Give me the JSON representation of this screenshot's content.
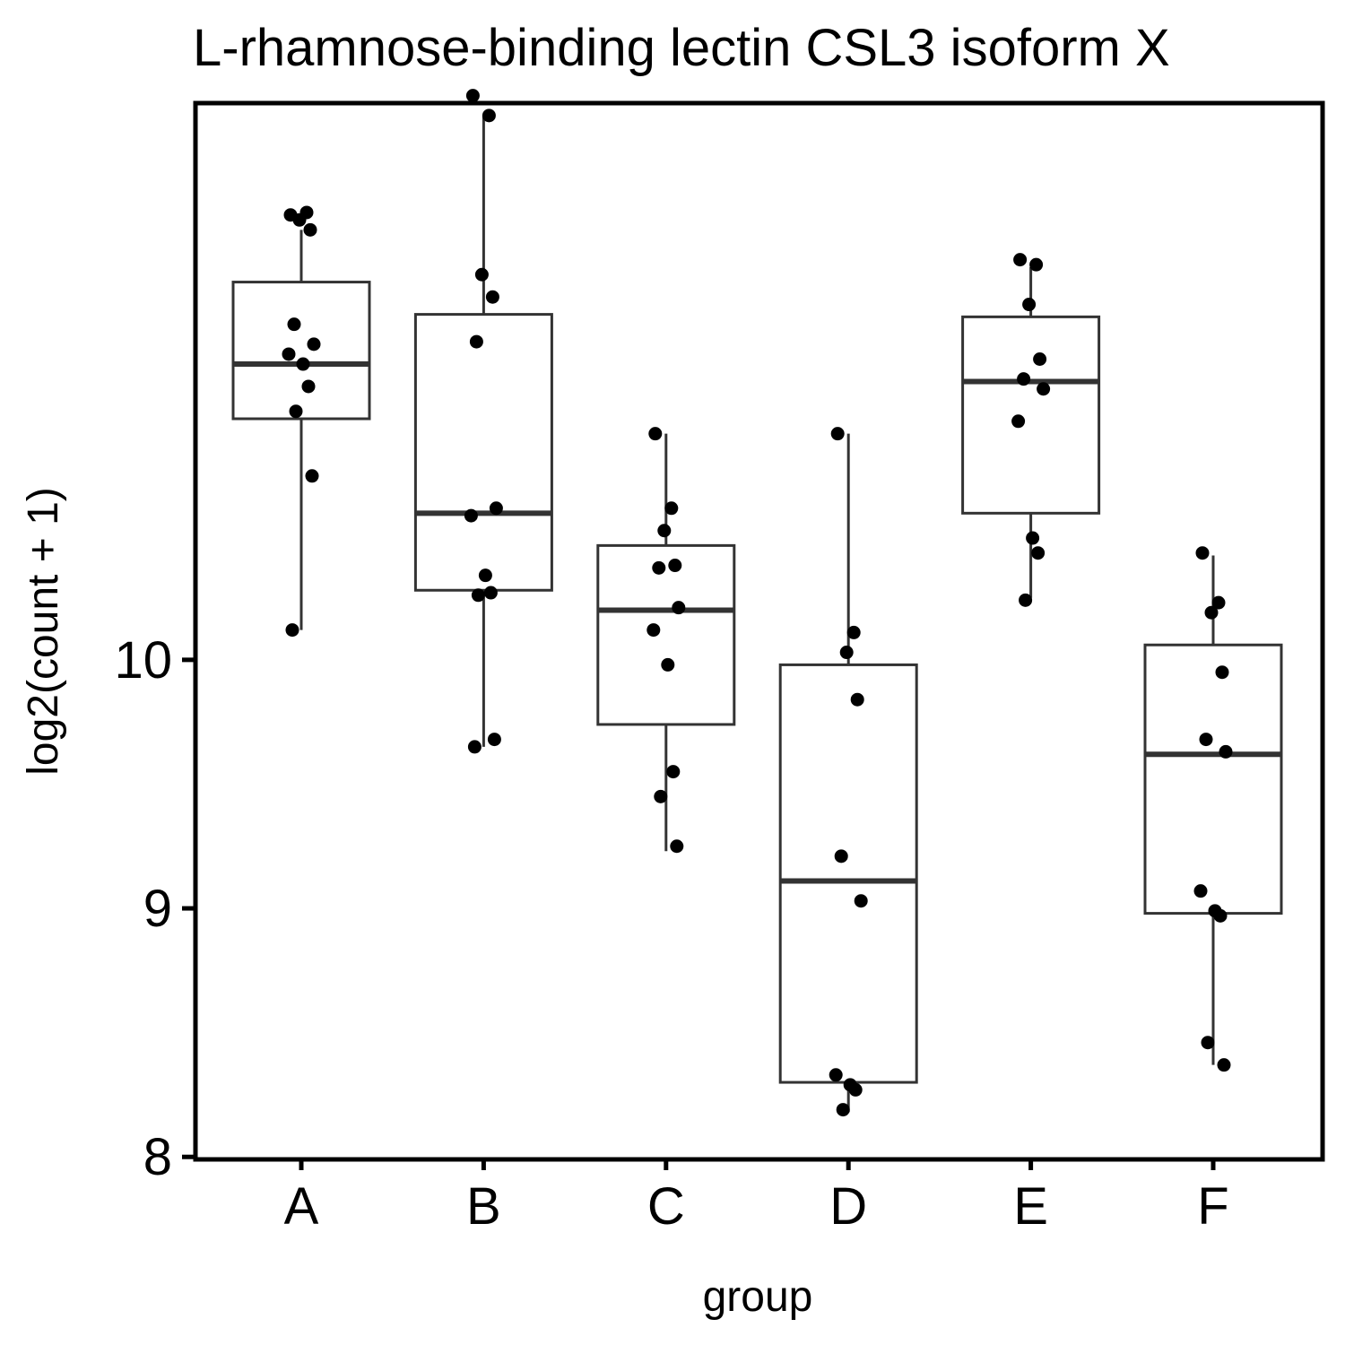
{
  "chart_data": {
    "type": "box",
    "title": "L-rhamnose-binding lectin CSL3 isoform X",
    "xlabel": "group",
    "ylabel": "log2(count + 1)",
    "ylim": [
      7.99,
      12.24
    ],
    "yticks": [
      8,
      9,
      10
    ],
    "ytick_labels": [
      "8",
      "9",
      "10"
    ],
    "categories": [
      "A",
      "B",
      "C",
      "D",
      "E",
      "F"
    ],
    "grid": false,
    "legend": "none",
    "colors": {
      "box_stroke": "#333333",
      "point": "#000000",
      "frame": "#000000"
    },
    "boxes": [
      {
        "group": "A",
        "whisker_low": 10.12,
        "q1": 10.97,
        "median": 11.19,
        "q3": 11.52,
        "whisker_high": 11.73
      },
      {
        "group": "B",
        "whisker_low": 9.65,
        "q1": 10.28,
        "median": 10.59,
        "q3": 11.39,
        "whisker_high": 12.19
      },
      {
        "group": "C",
        "whisker_low": 9.23,
        "q1": 9.74,
        "median": 10.2,
        "q3": 10.46,
        "whisker_high": 10.91
      },
      {
        "group": "D",
        "whisker_low": 8.18,
        "q1": 8.3,
        "median": 9.11,
        "q3": 9.98,
        "whisker_high": 10.91
      },
      {
        "group": "E",
        "whisker_low": 10.25,
        "q1": 10.59,
        "median": 11.12,
        "q3": 11.38,
        "whisker_high": 11.58
      },
      {
        "group": "F",
        "whisker_low": 8.37,
        "q1": 8.98,
        "median": 9.62,
        "q3": 10.06,
        "whisker_high": 10.42
      }
    ],
    "points": [
      {
        "group": "A",
        "values": [
          11.79,
          11.8,
          11.77,
          11.73,
          11.35,
          11.27,
          11.23,
          11.19,
          11.1,
          11.0,
          10.74,
          10.12
        ]
      },
      {
        "group": "B",
        "values": [
          12.27,
          12.19,
          11.55,
          11.46,
          11.28,
          10.61,
          10.58,
          10.34,
          10.27,
          10.26,
          9.68,
          9.65
        ]
      },
      {
        "group": "C",
        "values": [
          10.91,
          10.61,
          10.52,
          10.38,
          10.37,
          10.21,
          10.12,
          9.98,
          9.55,
          9.45,
          9.25
        ]
      },
      {
        "group": "D",
        "values": [
          10.91,
          10.11,
          10.03,
          9.84,
          9.21,
          9.03,
          8.33,
          8.29,
          8.27,
          8.19
        ]
      },
      {
        "group": "E",
        "values": [
          11.61,
          11.59,
          11.43,
          11.21,
          11.13,
          11.09,
          10.96,
          10.49,
          10.43,
          10.24
        ]
      },
      {
        "group": "F",
        "values": [
          10.43,
          10.23,
          10.19,
          9.95,
          9.68,
          9.63,
          9.07,
          8.99,
          8.97,
          8.46,
          8.37
        ]
      }
    ]
  }
}
